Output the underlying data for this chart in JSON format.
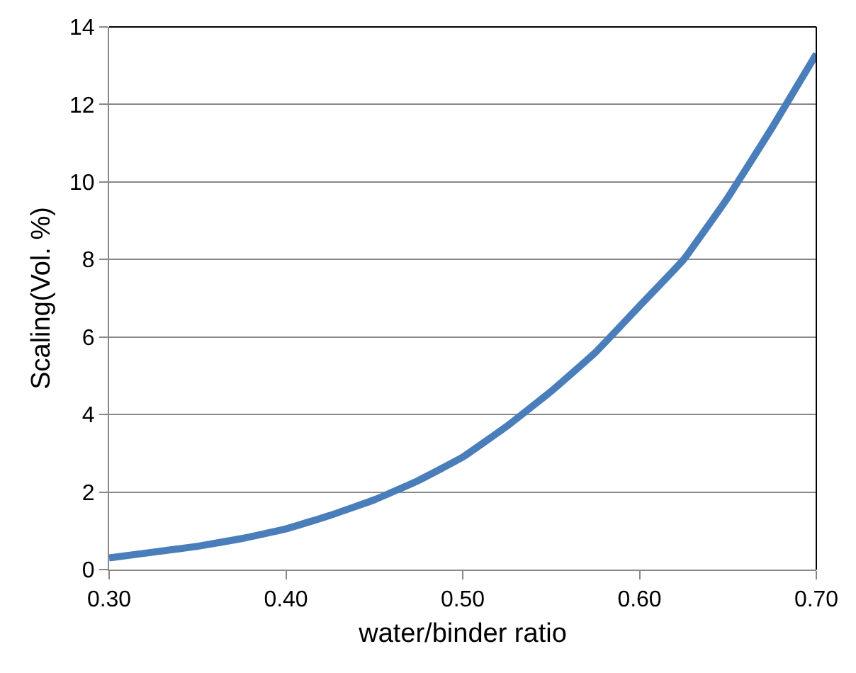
{
  "chart_data": {
    "type": "line",
    "xlabel": "water/binder ratio",
    "ylabel": "Scaling(Vol. %)",
    "x": [
      0.3,
      0.325,
      0.35,
      0.375,
      0.4,
      0.425,
      0.45,
      0.475,
      0.5,
      0.525,
      0.55,
      0.575,
      0.6,
      0.625,
      0.65,
      0.675,
      0.7
    ],
    "series": [
      {
        "color": "#4a7ebb",
        "values": [
          0.3,
          0.45,
          0.6,
          0.8,
          1.05,
          1.4,
          1.8,
          2.3,
          2.9,
          3.7,
          4.6,
          5.6,
          6.8,
          8.0,
          9.6,
          11.4,
          13.3
        ]
      }
    ],
    "xlim": [
      0.3,
      0.7
    ],
    "ylim": [
      0,
      14
    ],
    "xticks": [
      {
        "value": 0.3,
        "label": "0.30"
      },
      {
        "value": 0.4,
        "label": "0.40"
      },
      {
        "value": 0.5,
        "label": "0.50"
      },
      {
        "value": 0.6,
        "label": "0.60"
      },
      {
        "value": 0.7,
        "label": "0.70"
      }
    ],
    "yticks": [
      0,
      2,
      4,
      6,
      8,
      10,
      12,
      14
    ],
    "grid": "y",
    "legend": false,
    "marker": "none",
    "line_style": "solid"
  }
}
